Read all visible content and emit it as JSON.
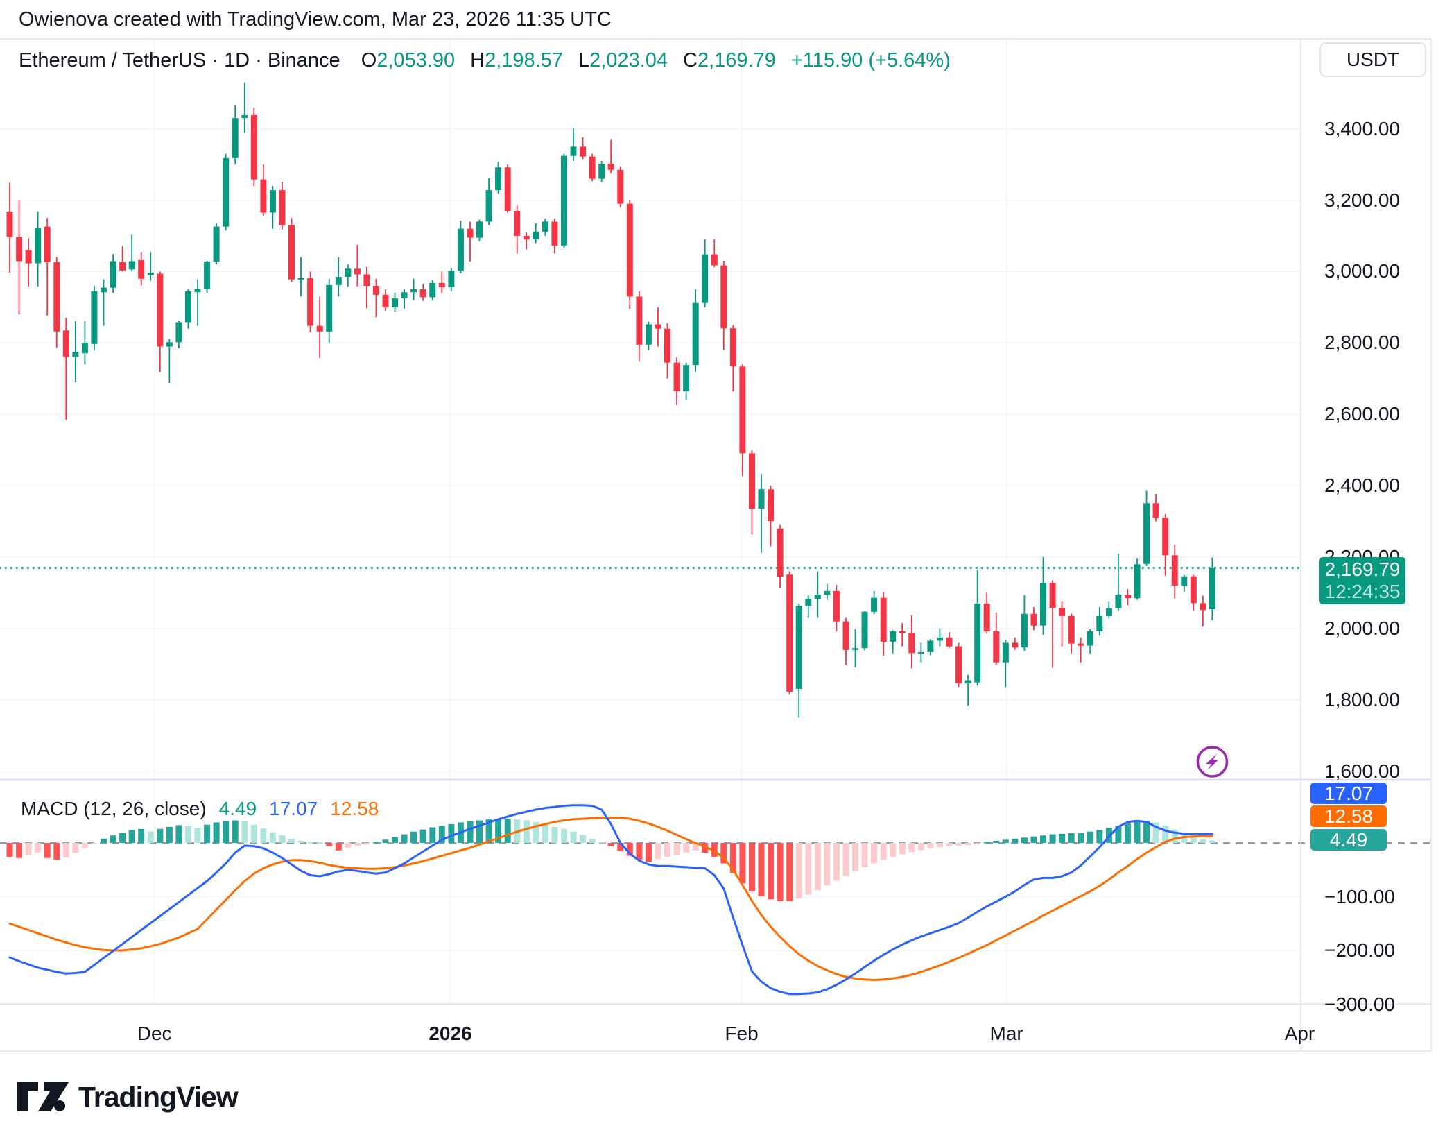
{
  "attribution": "Owienova created with TradingView.com, Mar 23, 2026 11:35 UTC",
  "header": {
    "symbol_line": "Ethereum / TetherUS · 1D · Binance",
    "o_label": "O",
    "o_value": "2,053.90",
    "h_label": "H",
    "h_value": "2,198.57",
    "l_label": "L",
    "l_value": "2,023.04",
    "c_label": "C",
    "c_value": "2,169.79",
    "change": "+115.90 (+5.64%)"
  },
  "price_axis": {
    "currency_button": "USDT",
    "labels": [
      {
        "v": 3400,
        "t": "3,400.00"
      },
      {
        "v": 3200,
        "t": "3,200.00"
      },
      {
        "v": 3000,
        "t": "3,000.00"
      },
      {
        "v": 2800,
        "t": "2,800.00"
      },
      {
        "v": 2600,
        "t": "2,600.00"
      },
      {
        "v": 2400,
        "t": "2,400.00"
      },
      {
        "v": 2200,
        "t": "2,200.00"
      },
      {
        "v": 2000,
        "t": "2,000.00"
      },
      {
        "v": 1800,
        "t": "1,800.00"
      },
      {
        "v": 1600,
        "t": "1,600.00"
      }
    ]
  },
  "price_badge": {
    "price": "2,169.79",
    "countdown": "12:24:35"
  },
  "macd_pane": {
    "title": "MACD (12, 26, close)",
    "hist_value": "4.49",
    "macd_value": "17.07",
    "signal_value": "12.58",
    "axis_labels": [
      {
        "v": -100,
        "t": "−100.00"
      },
      {
        "v": -200,
        "t": "−200.00"
      },
      {
        "v": -300,
        "t": "−300.00"
      }
    ]
  },
  "time_axis": [
    {
      "t": "Dec",
      "i": 15.4,
      "bold": false
    },
    {
      "t": "2026",
      "i": 46.9,
      "bold": true
    },
    {
      "t": "Feb",
      "i": 77.9,
      "bold": false
    },
    {
      "t": "Mar",
      "i": 106.1,
      "bold": false
    },
    {
      "t": "Apr",
      "i": 137.3,
      "bold": false
    }
  ],
  "logo": {
    "wordmark": "TradingView"
  },
  "colors": {
    "up": "#089981",
    "down": "#F23645",
    "hist_pos": "#26A69A",
    "hist_pos_light": "#ACE5DC",
    "hist_neg": "#FF5252",
    "hist_neg_light": "#FCCBCD",
    "macd_line": "#2962FF",
    "signal_line": "#FF6D00",
    "grid": "#F2F3F5",
    "border": "#E0E3EB",
    "zero_dash": "#9598A1",
    "price_line": "#089981",
    "text": "#131722",
    "lightning": "#9C27B0"
  },
  "chart_data": {
    "type": "candlestick",
    "title": "Ethereum / TetherUS · 1D · Binance",
    "unit": "USDT",
    "y_axis": {
      "min": 1600,
      "max": 3400,
      "step": 200
    },
    "current_price": 2169.79,
    "current_candle": {
      "o": 2053.9,
      "h": 2198.57,
      "l": 2023.04,
      "c": 2169.79,
      "change": 115.9,
      "change_pct": 5.64
    },
    "candles": [
      [
        3168,
        3249,
        2997,
        3097
      ],
      [
        3097,
        3200,
        2880,
        3029
      ],
      [
        3060,
        3094,
        2958,
        3023
      ],
      [
        3023,
        3168,
        2958,
        3123
      ],
      [
        3126,
        3150,
        2877,
        3026
      ],
      [
        3026,
        3040,
        2787,
        2832
      ],
      [
        2835,
        2870,
        2585,
        2761
      ],
      [
        2761,
        2861,
        2690,
        2775
      ],
      [
        2771,
        2861,
        2740,
        2800
      ],
      [
        2797,
        2960,
        2780,
        2945
      ],
      [
        2942,
        2978,
        2848,
        2955
      ],
      [
        2955,
        3049,
        2940,
        3029
      ],
      [
        3026,
        3071,
        3000,
        3003
      ],
      [
        3006,
        3103,
        3000,
        3029
      ],
      [
        3032,
        3055,
        2961,
        2980
      ],
      [
        2990,
        3055,
        2974,
        2997
      ],
      [
        2994,
        3000,
        2719,
        2790
      ],
      [
        2790,
        2812,
        2688,
        2802
      ],
      [
        2802,
        2862,
        2785,
        2858
      ],
      [
        2858,
        2950,
        2840,
        2945
      ],
      [
        2942,
        2978,
        2848,
        2952
      ],
      [
        2952,
        3030,
        2940,
        3028
      ],
      [
        3028,
        3135,
        3020,
        3126
      ],
      [
        3126,
        3330,
        3115,
        3318
      ],
      [
        3318,
        3465,
        3300,
        3430
      ],
      [
        3430,
        3530,
        3388,
        3438
      ],
      [
        3438,
        3460,
        3240,
        3258
      ],
      [
        3258,
        3300,
        3155,
        3165
      ],
      [
        3165,
        3240,
        3120,
        3228
      ],
      [
        3228,
        3250,
        3118,
        3130
      ],
      [
        3130,
        3150,
        2970,
        2978
      ],
      [
        2978,
        3040,
        2930,
        2982
      ],
      [
        2982,
        3000,
        2830,
        2848
      ],
      [
        2848,
        2930,
        2758,
        2832
      ],
      [
        2832,
        2980,
        2800,
        2962
      ],
      [
        2962,
        3040,
        2930,
        2985
      ],
      [
        2985,
        3020,
        2958,
        3008
      ],
      [
        3008,
        3074,
        2958,
        2992
      ],
      [
        2992,
        3013,
        2897,
        2960
      ],
      [
        2960,
        2980,
        2872,
        2935
      ],
      [
        2935,
        2950,
        2890,
        2900
      ],
      [
        2900,
        2940,
        2888,
        2925
      ],
      [
        2925,
        2950,
        2896,
        2942
      ],
      [
        2942,
        2980,
        2920,
        2950
      ],
      [
        2950,
        2965,
        2918,
        2928
      ],
      [
        2928,
        2976,
        2920,
        2968
      ],
      [
        2968,
        3000,
        2940,
        2956
      ],
      [
        2956,
        3010,
        2945,
        3002
      ],
      [
        3002,
        3142,
        2995,
        3120
      ],
      [
        3120,
        3140,
        3028,
        3095
      ],
      [
        3095,
        3145,
        3085,
        3140
      ],
      [
        3140,
        3262,
        3130,
        3228
      ],
      [
        3228,
        3307,
        3218,
        3292
      ],
      [
        3292,
        3300,
        3165,
        3170
      ],
      [
        3170,
        3185,
        3051,
        3100
      ],
      [
        3100,
        3110,
        3062,
        3090
      ],
      [
        3090,
        3135,
        3080,
        3112
      ],
      [
        3112,
        3148,
        3100,
        3140
      ],
      [
        3140,
        3148,
        3051,
        3073
      ],
      [
        3073,
        3330,
        3065,
        3324
      ],
      [
        3324,
        3402,
        3310,
        3350
      ],
      [
        3350,
        3376,
        3315,
        3322
      ],
      [
        3322,
        3330,
        3253,
        3260
      ],
      [
        3260,
        3310,
        3250,
        3302
      ],
      [
        3302,
        3369,
        3275,
        3285
      ],
      [
        3285,
        3295,
        3180,
        3190
      ],
      [
        3190,
        3200,
        2895,
        2930
      ],
      [
        2930,
        2945,
        2748,
        2795
      ],
      [
        2795,
        2860,
        2780,
        2852
      ],
      [
        2852,
        2900,
        2790,
        2840
      ],
      [
        2840,
        2855,
        2700,
        2745
      ],
      [
        2745,
        2760,
        2625,
        2665
      ],
      [
        2665,
        2745,
        2640,
        2738
      ],
      [
        2738,
        2950,
        2720,
        2912
      ],
      [
        2912,
        3090,
        2900,
        3048
      ],
      [
        3048,
        3090,
        3012,
        3017
      ],
      [
        3017,
        3030,
        2781,
        2841
      ],
      [
        2841,
        2850,
        2664,
        2734
      ],
      [
        2734,
        2740,
        2427,
        2491
      ],
      [
        2491,
        2500,
        2264,
        2336
      ],
      [
        2336,
        2433,
        2212,
        2390
      ],
      [
        2390,
        2400,
        2230,
        2301
      ],
      [
        2280,
        2290,
        2113,
        2145
      ],
      [
        2151,
        2160,
        1815,
        1823
      ],
      [
        1831,
        2070,
        1750,
        2064
      ],
      [
        2064,
        2093,
        2030,
        2083
      ],
      [
        2083,
        2160,
        2030,
        2095
      ],
      [
        2095,
        2125,
        2080,
        2105
      ],
      [
        2105,
        2122,
        1992,
        2020
      ],
      [
        2020,
        2030,
        1898,
        1940
      ],
      [
        1940,
        1998,
        1891,
        1945
      ],
      [
        1945,
        2050,
        1938,
        2047
      ],
      [
        2047,
        2105,
        2040,
        2086
      ],
      [
        2086,
        2102,
        1924,
        1963
      ],
      [
        1963,
        1995,
        1930,
        1992
      ],
      [
        1992,
        2015,
        1950,
        1988
      ],
      [
        1988,
        2037,
        1888,
        1931
      ],
      [
        1931,
        1960,
        1905,
        1934
      ],
      [
        1934,
        1970,
        1925,
        1966
      ],
      [
        1966,
        2000,
        1950,
        1975
      ],
      [
        1975,
        1990,
        1945,
        1950
      ],
      [
        1950,
        1960,
        1836,
        1846
      ],
      [
        1846,
        1870,
        1784,
        1855
      ],
      [
        1849,
        2164,
        1840,
        2070
      ],
      [
        2070,
        2102,
        1985,
        1992
      ],
      [
        1992,
        2045,
        1898,
        1905
      ],
      [
        1905,
        1968,
        1836,
        1960
      ],
      [
        1960,
        1975,
        1940,
        1947
      ],
      [
        1947,
        2093,
        1937,
        2041
      ],
      [
        2041,
        2060,
        1995,
        2008
      ],
      [
        2008,
        2200,
        1982,
        2128
      ],
      [
        2128,
        2135,
        1890,
        2058
      ],
      [
        2058,
        2075,
        1950,
        2035
      ],
      [
        2035,
        2042,
        1930,
        1958
      ],
      [
        1958,
        1975,
        1905,
        1952
      ],
      [
        1952,
        1998,
        1930,
        1992
      ],
      [
        1992,
        2060,
        1980,
        2035
      ],
      [
        2035,
        2075,
        2028,
        2057
      ],
      [
        2057,
        2210,
        2050,
        2095
      ],
      [
        2095,
        2110,
        2065,
        2085
      ],
      [
        2085,
        2196,
        2080,
        2180
      ],
      [
        2181,
        2386,
        2175,
        2351
      ],
      [
        2351,
        2377,
        2300,
        2310
      ],
      [
        2310,
        2320,
        2148,
        2205
      ],
      [
        2205,
        2235,
        2084,
        2120
      ],
      [
        2120,
        2150,
        2103,
        2146
      ],
      [
        2146,
        2150,
        2051,
        2071
      ],
      [
        2071,
        2092,
        2006,
        2052
      ],
      [
        2053.9,
        2198.57,
        2023.04,
        2169.79
      ]
    ],
    "indicator": {
      "name": "MACD",
      "params": [
        12,
        26,
        "close"
      ],
      "last_values": {
        "histogram": 4.49,
        "macd": 17.07,
        "signal": 12.58
      },
      "y_ticks": [
        -100,
        -200,
        -300
      ],
      "histogram": [
        -26,
        -28,
        -22,
        -18,
        -28,
        -31,
        -27,
        -18,
        -10,
        -2,
        8,
        14,
        19,
        24,
        26,
        21,
        26,
        30,
        33,
        31,
        28,
        34,
        38,
        40,
        42,
        40,
        34,
        27,
        20,
        14,
        8,
        4,
        2,
        1,
        -6,
        -14,
        -9,
        -5,
        -3,
        2,
        6,
        11,
        16,
        21,
        25,
        29,
        32,
        35,
        38,
        40,
        42,
        44,
        45,
        45,
        44,
        42,
        39,
        35,
        30,
        26,
        21,
        15,
        8,
        2,
        -6,
        -15,
        -24,
        -31,
        -35,
        -30,
        -26,
        -22,
        -18,
        -14,
        -18,
        -26,
        -38,
        -56,
        -75,
        -90,
        -99,
        -105,
        -108,
        -108,
        -103,
        -96,
        -88,
        -79,
        -70,
        -61,
        -53,
        -45,
        -38,
        -32,
        -26,
        -21,
        -17,
        -13,
        -10,
        -8,
        -6,
        -5,
        -4,
        -1,
        2,
        4,
        6,
        8,
        10,
        12,
        14,
        16,
        17,
        18,
        19,
        21,
        24,
        28,
        32,
        36,
        39,
        41,
        38,
        32,
        25,
        18,
        12,
        7,
        4.49
      ],
      "macd_line": [
        -213,
        -220,
        -226,
        -232,
        -236,
        -240,
        -243,
        -242,
        -240,
        -227,
        -214,
        -201,
        -188,
        -175,
        -162,
        -149,
        -136,
        -123,
        -110,
        -97,
        -84,
        -71,
        -55,
        -38,
        -18,
        -5,
        -6,
        -10,
        -18,
        -28,
        -40,
        -52,
        -60,
        -62,
        -58,
        -53,
        -50,
        -52,
        -55,
        -57,
        -55,
        -47,
        -38,
        -27,
        -16,
        -5,
        6,
        13,
        20,
        26,
        32,
        38,
        44,
        49,
        54,
        58,
        62,
        65,
        67,
        69,
        70,
        70,
        69,
        62,
        35,
        0,
        -20,
        -33,
        -40,
        -43,
        -43,
        -44,
        -45,
        -46,
        -47,
        -60,
        -85,
        -139,
        -190,
        -239,
        -258,
        -270,
        -277,
        -281,
        -281,
        -280,
        -278,
        -272,
        -264,
        -254,
        -243,
        -231,
        -219,
        -208,
        -198,
        -189,
        -181,
        -174,
        -168,
        -162,
        -156,
        -149,
        -139,
        -128,
        -118,
        -109,
        -100,
        -90,
        -78,
        -68,
        -65,
        -65,
        -62,
        -55,
        -42,
        -25,
        -8,
        12,
        30,
        39,
        41,
        39,
        30,
        23,
        19,
        17,
        16,
        16.5,
        17.07
      ],
      "signal_line": [
        -150,
        -156,
        -162,
        -168,
        -174,
        -180,
        -185,
        -190,
        -194,
        -197,
        -199,
        -200,
        -200,
        -198,
        -196,
        -192,
        -188,
        -182,
        -176,
        -168,
        -160,
        -142,
        -124,
        -106,
        -88,
        -71,
        -57,
        -47,
        -40,
        -35,
        -32,
        -32,
        -34,
        -37,
        -41,
        -44,
        -46,
        -47,
        -48,
        -48,
        -47,
        -45,
        -42,
        -38,
        -34,
        -29,
        -24,
        -19,
        -14,
        -9,
        -3,
        3,
        9,
        15,
        21,
        26,
        31,
        35,
        39,
        42,
        44,
        45,
        46,
        47,
        47,
        47,
        45,
        41,
        36,
        30,
        23,
        15,
        7,
        0,
        -7,
        -15,
        -28,
        -50,
        -78,
        -108,
        -134,
        -156,
        -175,
        -192,
        -207,
        -219,
        -229,
        -237,
        -244,
        -249,
        -252,
        -254,
        -255,
        -254,
        -252,
        -249,
        -245,
        -240,
        -234,
        -228,
        -221,
        -214,
        -206,
        -198,
        -190,
        -181,
        -172,
        -163,
        -154,
        -145,
        -135,
        -126,
        -117,
        -108,
        -99,
        -90,
        -80,
        -68,
        -55,
        -43,
        -30,
        -18,
        -8,
        2,
        8,
        11,
        12,
        12.5,
        12.58
      ]
    }
  }
}
